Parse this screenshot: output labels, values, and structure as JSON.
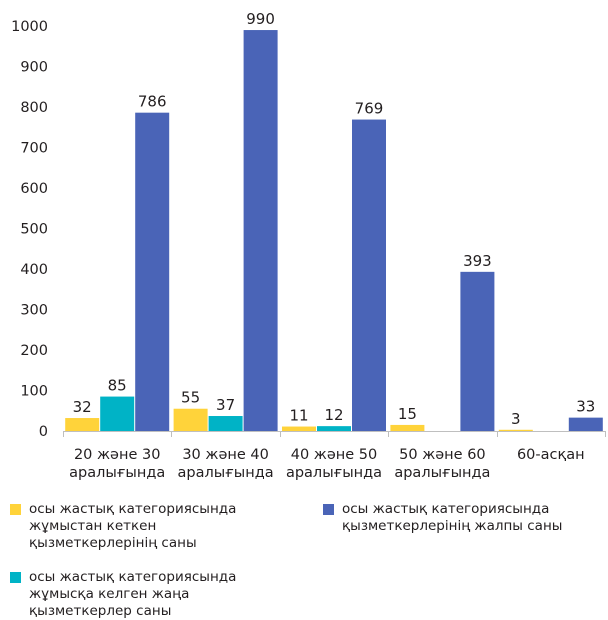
{
  "chart_data": {
    "type": "bar",
    "categories": [
      [
        "20 және 30",
        "аралығында"
      ],
      [
        "30 және 40",
        "аралығында"
      ],
      [
        "40 және 50",
        "аралығында"
      ],
      [
        "50 және 60",
        "аралығында"
      ],
      [
        "60-асқан"
      ]
    ],
    "series": [
      {
        "name": "осы жастық категориясында жұмыстан кеткен қызметкерлерінің саны",
        "color": "#ffd33a",
        "values": [
          32,
          55,
          11,
          15,
          3
        ]
      },
      {
        "name": "осы жастық категориясында жұмысқа келген жаңа қызметкерлер саны",
        "color": "#00b3c6",
        "values": [
          85,
          37,
          12,
          null,
          null
        ]
      },
      {
        "name": "осы жастық категориясында қызметкерлерінің жалпы саны",
        "color": "#4a64b7",
        "values": [
          786,
          990,
          769,
          393,
          33
        ]
      }
    ],
    "ylim": [
      0,
      1000
    ],
    "yticks": [
      0,
      100,
      200,
      300,
      400,
      500,
      600,
      700,
      800,
      900,
      1000
    ],
    "grid": false,
    "legend_position": "bottom"
  }
}
